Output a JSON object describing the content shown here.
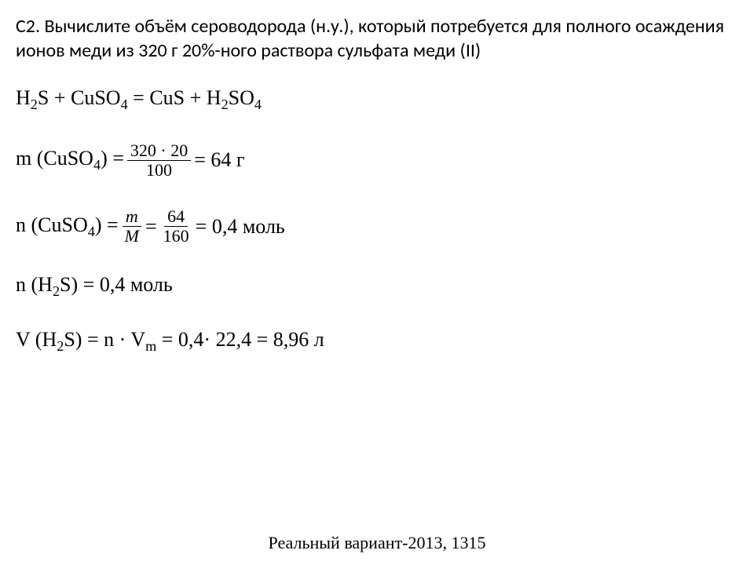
{
  "problem": {
    "text": "С2. Вычислите объём сероводорода (н.у.), который потребуется для полного осаждения ионов меди из 320 г 20%-ного раствора сульфата меди (II)"
  },
  "reaction": {
    "h2s": "H",
    "h2s_sub": "2",
    "s": "S + CuSO",
    "cuso4_sub": "4",
    "eq": " = CuS + H",
    "h2so4_sub2": "2",
    "so": "SO",
    "h2so4_sub4": "4"
  },
  "mass": {
    "prefix": "m (CuSO",
    "sub": "4",
    "close": ") =",
    "frac_num": "320 · 20",
    "frac_den": "100",
    "result": "= 64 г"
  },
  "moles_cuso4": {
    "prefix": "n (CuSO",
    "sub": "4",
    "close": ") =",
    "frac1_num": "m",
    "frac1_den": "M",
    "mid": "=",
    "frac2_num": "64",
    "frac2_den": "160",
    "result": "= 0,4 моль"
  },
  "moles_h2s": {
    "prefix": "n (H",
    "sub": "2",
    "suffix": "S) = 0,4 моль"
  },
  "volume": {
    "prefix": "V (H",
    "sub": "2",
    "mid": "S) = n · V",
    "vm_sub": "m",
    "result": " = 0,4· 22,4 = 8,96 л"
  },
  "footer": {
    "text": "Реальный вариант-2013, 1315"
  },
  "colors": {
    "background": "#ffffff",
    "text": "#000000"
  },
  "fonts": {
    "problem_family": "Calibri",
    "problem_size": 24,
    "equation_family": "Times New Roman",
    "equation_size": 26,
    "footer_size": 22
  }
}
